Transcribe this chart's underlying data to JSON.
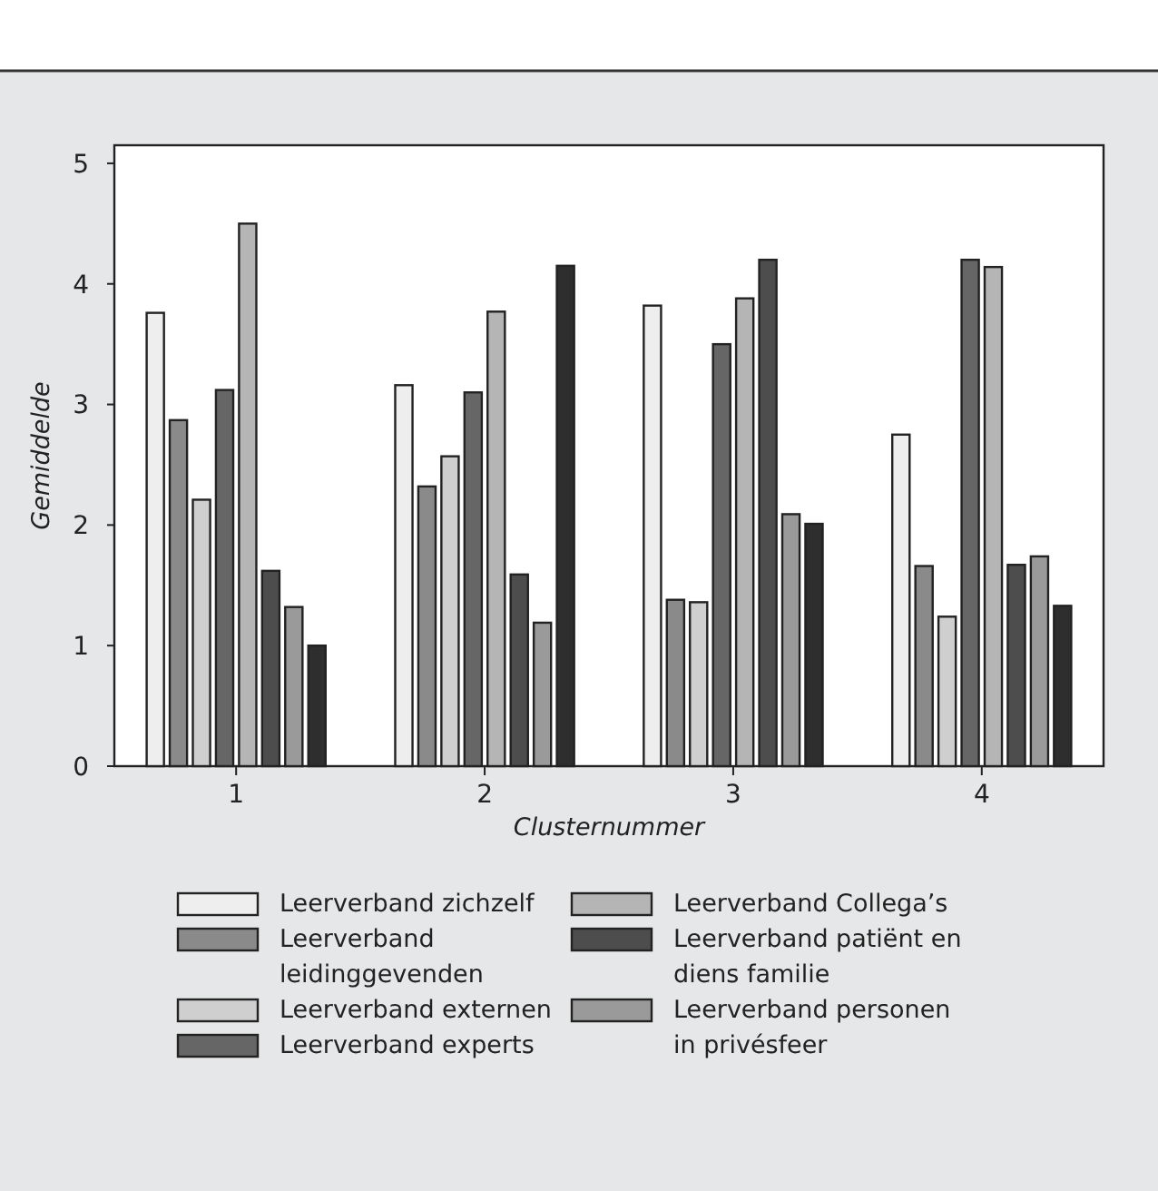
{
  "chart_data": {
    "type": "bar",
    "xlabel": "Clusternummer",
    "ylabel": "Gemiddelde",
    "categories": [
      "1",
      "2",
      "3",
      "4"
    ],
    "series": [
      {
        "name": "Leerverband zichzelf",
        "color": "#eeeeee",
        "values": [
          3.76,
          3.16,
          3.82,
          2.75
        ]
      },
      {
        "name": "Leerverband leidinggevenden",
        "color": "#8a8a8a",
        "values": [
          2.87,
          2.32,
          1.38,
          1.66
        ]
      },
      {
        "name": "Leerverband externen",
        "color": "#cfcfcf",
        "values": [
          2.21,
          2.57,
          1.36,
          1.24
        ]
      },
      {
        "name": "Leerverband experts",
        "color": "#666666",
        "values": [
          3.12,
          3.1,
          3.5,
          4.2
        ]
      },
      {
        "name": "Leerverband Collega’s",
        "color": "#b5b5b5",
        "values": [
          4.5,
          3.77,
          3.88,
          4.14
        ]
      },
      {
        "name": "Leerverband patiënt en diens familie",
        "color": "#4d4d4d",
        "values": [
          1.62,
          1.59,
          4.2,
          1.67
        ]
      },
      {
        "name": "Leerverband personen in privésfeer",
        "color": "#9a9a9a",
        "values": [
          1.32,
          1.19,
          2.09,
          1.74
        ]
      },
      {
        "color": "#2e2e2e",
        "values": [
          1.0,
          4.15,
          2.01,
          1.33
        ]
      }
    ],
    "ylim": [
      0,
      5.15
    ],
    "yticks": [
      0,
      1,
      2,
      3,
      4,
      5
    ],
    "grid": false,
    "legend": "bottom"
  }
}
